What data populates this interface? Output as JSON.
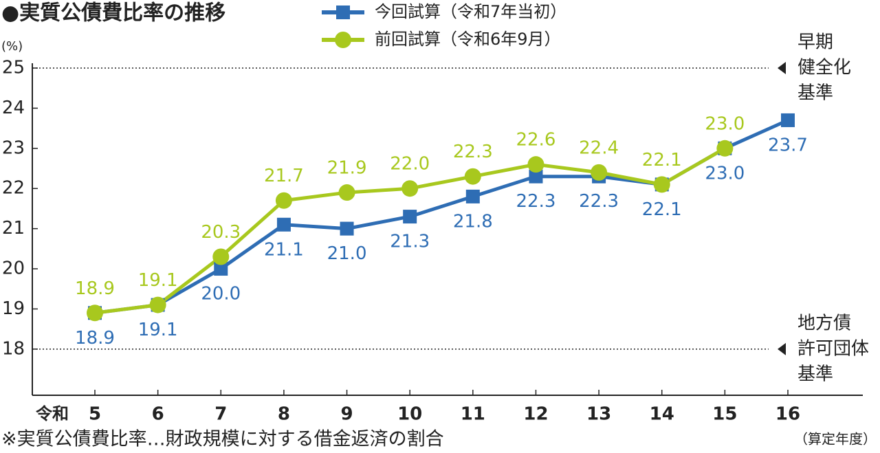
{
  "chart_data": {
    "type": "line",
    "title": "●実質公債費比率の推移",
    "y_unit": "(%)",
    "x_prefix": "令和",
    "x_label": "（算定年度）",
    "note": "※実質公債費比率…財政規模に対する借金返済の割合",
    "categories": [
      "5",
      "6",
      "7",
      "8",
      "9",
      "10",
      "11",
      "12",
      "13",
      "14",
      "15",
      "16"
    ],
    "series": [
      {
        "name": "今回試算（令和7年当初）",
        "color": "#2e6db4",
        "marker": "square",
        "label_position": "below",
        "values": [
          18.9,
          19.1,
          20.0,
          21.1,
          21.0,
          21.3,
          21.8,
          22.3,
          22.3,
          22.1,
          23.0,
          23.7
        ],
        "value_labels": [
          "18.9",
          "19.1",
          "20.0",
          "21.1",
          "21.0",
          "21.3",
          "21.8",
          "22.3",
          "22.3",
          "22.1",
          "23.0",
          "23.7"
        ]
      },
      {
        "name": "前回試算（令和6年9月）",
        "color": "#a8c81e",
        "marker": "circle",
        "label_position": "above",
        "values": [
          18.9,
          19.1,
          20.3,
          21.7,
          21.9,
          22.0,
          22.3,
          22.6,
          22.4,
          22.1,
          23.0,
          null
        ],
        "value_labels": [
          "18.9",
          "19.1",
          "20.3",
          "21.7",
          "21.9",
          "22.0",
          "22.3",
          "22.6",
          "22.4",
          "22.1",
          "23.0",
          null
        ]
      }
    ],
    "ylim": [
      16.85,
      25
    ],
    "yticks": [
      18,
      19,
      20,
      21,
      22,
      23,
      24,
      25
    ],
    "reference_lines": [
      {
        "value": 25,
        "label": [
          "早期",
          "健全化",
          "基準"
        ]
      },
      {
        "value": 18,
        "label": [
          "地方債",
          "許可団体",
          "基準"
        ]
      }
    ]
  }
}
